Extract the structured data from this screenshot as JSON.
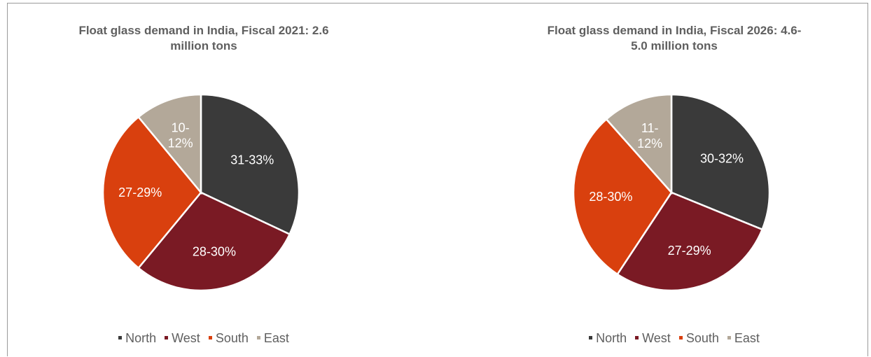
{
  "chart_data": [
    {
      "type": "pie",
      "title_lines": [
        "Float glass demand in India, Fiscal 2021: 2.6",
        "million tons"
      ],
      "categories": [
        "North",
        "West",
        "South",
        "East"
      ],
      "values": [
        32,
        29,
        28,
        11
      ],
      "labels": [
        [
          "31-33%"
        ],
        [
          "28-30%"
        ],
        [
          "27-29%"
        ],
        [
          "10-",
          "12%"
        ]
      ],
      "colors": [
        "#3a3a3a",
        "#7a1a24",
        "#d9400e",
        "#b3a899"
      ],
      "legend_position": "bottom"
    },
    {
      "type": "pie",
      "title_lines": [
        "Float glass demand in India, Fiscal 2026: 4.6-",
        "5.0 million tons"
      ],
      "categories": [
        "North",
        "West",
        "South",
        "East"
      ],
      "values": [
        31,
        28,
        29,
        11.5
      ],
      "labels": [
        [
          "30-32%"
        ],
        [
          "27-29%"
        ],
        [
          "28-30%"
        ],
        [
          "11-",
          "12%"
        ]
      ],
      "colors": [
        "#3a3a3a",
        "#7a1a24",
        "#d9400e",
        "#b3a899"
      ],
      "legend_position": "bottom"
    }
  ]
}
